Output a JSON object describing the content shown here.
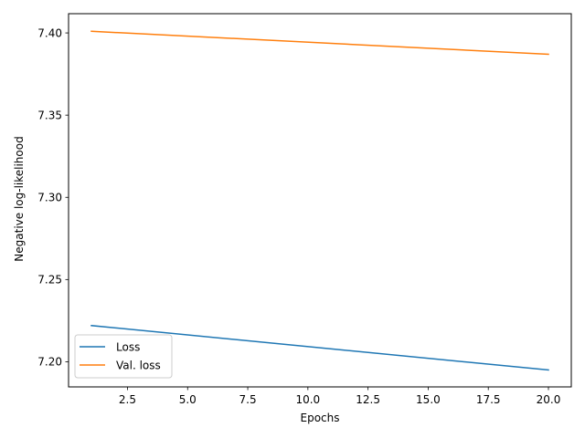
{
  "chart_data": {
    "type": "line",
    "title": "",
    "xlabel": "Epochs",
    "ylabel": "Negative log-likelihood",
    "xlim": [
      0.05,
      20.95
    ],
    "ylim": [
      7.1847,
      7.4117
    ],
    "x_ticks": [
      2.5,
      5.0,
      7.5,
      10.0,
      12.5,
      15.0,
      17.5,
      20.0
    ],
    "x_tick_labels": [
      "2.5",
      "5.0",
      "7.5",
      "10.0",
      "12.5",
      "15.0",
      "17.5",
      "20.0"
    ],
    "y_ticks": [
      7.2,
      7.25,
      7.3,
      7.35,
      7.4
    ],
    "y_tick_labels": [
      "7.20",
      "7.25",
      "7.30",
      "7.35",
      "7.40"
    ],
    "grid": false,
    "legend_position": "lower-left",
    "x": [
      1,
      20
    ],
    "series": [
      {
        "name": "Loss",
        "color": "#1f77b4",
        "x": [
          1,
          20
        ],
        "values": [
          7.222,
          7.195
        ]
      },
      {
        "name": "Val. loss",
        "color": "#ff7f0e",
        "x": [
          1,
          20
        ],
        "values": [
          7.401,
          7.387
        ]
      }
    ]
  }
}
